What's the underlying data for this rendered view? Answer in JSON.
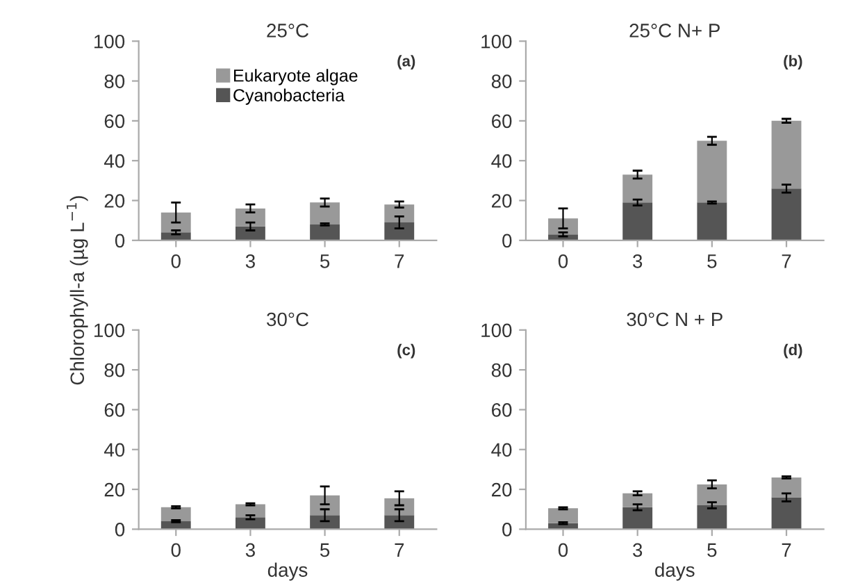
{
  "chart_data": [
    {
      "type": "bar",
      "title": "25°C",
      "ylabel": "Chlorophyll-a (µg L$^{−1}$)",
      "annotations": [
        "(a)"
      ],
      "categories": [
        "0",
        "3",
        "5",
        "7"
      ],
      "stacked": true,
      "legend": "top",
      "grid": false,
      "ylim": [
        0,
        100
      ],
      "yticks": [
        0,
        20,
        40,
        60,
        80,
        100
      ],
      "series": [
        {
          "name": "Cyanobacteria",
          "color": "#555555",
          "values": [
            4,
            7,
            8,
            9
          ],
          "errors": [
            1,
            2,
            0.5,
            3
          ]
        },
        {
          "name": "Eukaryote algae",
          "color": "#999999",
          "values": [
            10,
            9,
            11,
            9
          ],
          "errors": [
            5,
            2,
            2,
            1.5
          ]
        }
      ]
    },
    {
      "type": "bar",
      "title": "25°C N+ P",
      "annotations": [
        "(b)"
      ],
      "categories": [
        "0",
        "3",
        "5",
        "7"
      ],
      "stacked": true,
      "grid": false,
      "ylim": [
        0,
        100
      ],
      "yticks": [
        0,
        20,
        40,
        60,
        80,
        100
      ],
      "series": [
        {
          "color": "#555555",
          "values": [
            3,
            19,
            19,
            26
          ],
          "errors": [
            1,
            1.5,
            0.5,
            2
          ]
        },
        {
          "color": "#999999",
          "values": [
            8,
            14,
            31,
            34
          ],
          "errors": [
            5,
            2,
            2,
            1
          ]
        }
      ]
    },
    {
      "type": "bar",
      "title": "30°C",
      "xlabel": "days",
      "annotations": [
        "(c)"
      ],
      "categories": [
        "0",
        "3",
        "5",
        "7"
      ],
      "stacked": true,
      "grid": false,
      "ylim": [
        0,
        100
      ],
      "yticks": [
        0,
        20,
        40,
        60,
        80,
        100
      ],
      "series": [
        {
          "color": "#555555",
          "values": [
            4,
            6,
            7,
            7
          ],
          "errors": [
            0.5,
            1,
            3,
            3
          ]
        },
        {
          "color": "#999999",
          "values": [
            7,
            6.5,
            10,
            8.5
          ],
          "errors": [
            0.5,
            0.5,
            4.5,
            3.5
          ]
        }
      ]
    },
    {
      "type": "bar",
      "title": "30°C N + P",
      "xlabel": "days",
      "annotations": [
        "(d)"
      ],
      "categories": [
        "0",
        "3",
        "5",
        "7"
      ],
      "stacked": true,
      "grid": false,
      "ylim": [
        0,
        100
      ],
      "yticks": [
        0,
        20,
        40,
        60,
        80,
        100
      ],
      "series": [
        {
          "color": "#555555",
          "values": [
            3,
            11,
            12,
            16
          ],
          "errors": [
            0.5,
            1.5,
            1.5,
            2
          ]
        },
        {
          "color": "#999999",
          "values": [
            7.5,
            7,
            10.5,
            10
          ],
          "errors": [
            0.5,
            1,
            2,
            0.5
          ]
        }
      ]
    }
  ]
}
